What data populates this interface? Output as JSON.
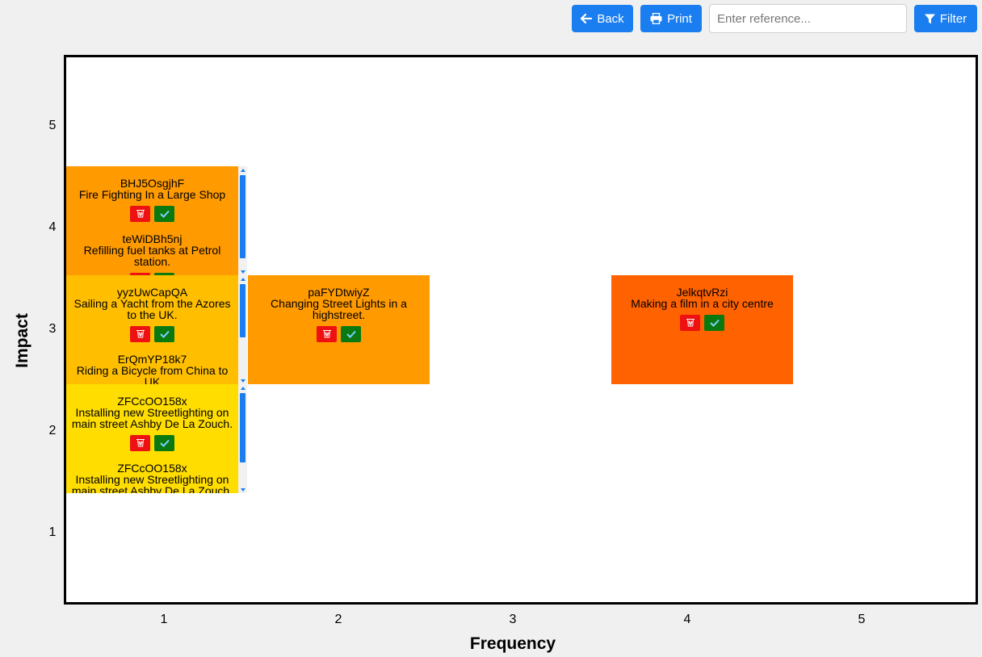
{
  "toolbar": {
    "back_label": "Back",
    "print_label": "Print",
    "reference_placeholder": "Enter reference...",
    "filter_label": "Filter",
    "accent_color": "#1a7ef0"
  },
  "axes": {
    "x_title": "Frequency",
    "y_title": "Impact",
    "x_ticks": [
      "1",
      "2",
      "3",
      "4",
      "5"
    ],
    "y_ticks": [
      "5",
      "4",
      "3",
      "2",
      "1"
    ]
  },
  "icons": {
    "back": "arrow-left-icon",
    "print": "printer-icon",
    "filter": "funnel-icon",
    "delete": "wastebasket-icon",
    "confirm": "checkmark-icon"
  },
  "cells": [
    {
      "frequency": 1,
      "impact": 4,
      "color": "#ff9a00",
      "items": [
        {
          "ref": "BHJ5OsgjhF",
          "desc": "Fire Fighting In a Large Shop"
        },
        {
          "ref": "teWiDBh5nj",
          "desc": "Refilling fuel tanks at Petrol station."
        }
      ]
    },
    {
      "frequency": 1,
      "impact": 3,
      "color": "#ffbf00",
      "items": [
        {
          "ref": "yyzUwCapQA",
          "desc": "Sailing a Yacht from the Azores to the UK."
        },
        {
          "ref": "ErQmYP18k7",
          "desc": "Riding a Bicycle from China to UK"
        }
      ]
    },
    {
      "frequency": 1,
      "impact": 2,
      "color": "#ffdd00",
      "items": [
        {
          "ref": "ZFCcOO158x",
          "desc": "Installing new Streetlighting on main street Ashby De La Zouch."
        },
        {
          "ref": "ZFCcOO158x",
          "desc": "Installing new Streetlighting on main street Ashby De La Zouch."
        }
      ]
    },
    {
      "frequency": 2,
      "impact": 3,
      "color": "#ff9a00",
      "items": [
        {
          "ref": "paFYDtwiyZ",
          "desc": "Changing Street Lights in a highstreet."
        }
      ]
    },
    {
      "frequency": 4,
      "impact": 3,
      "color": "#ff6200",
      "items": [
        {
          "ref": "JelkqtvRzi",
          "desc": "Making a film in a city centre"
        }
      ]
    }
  ]
}
